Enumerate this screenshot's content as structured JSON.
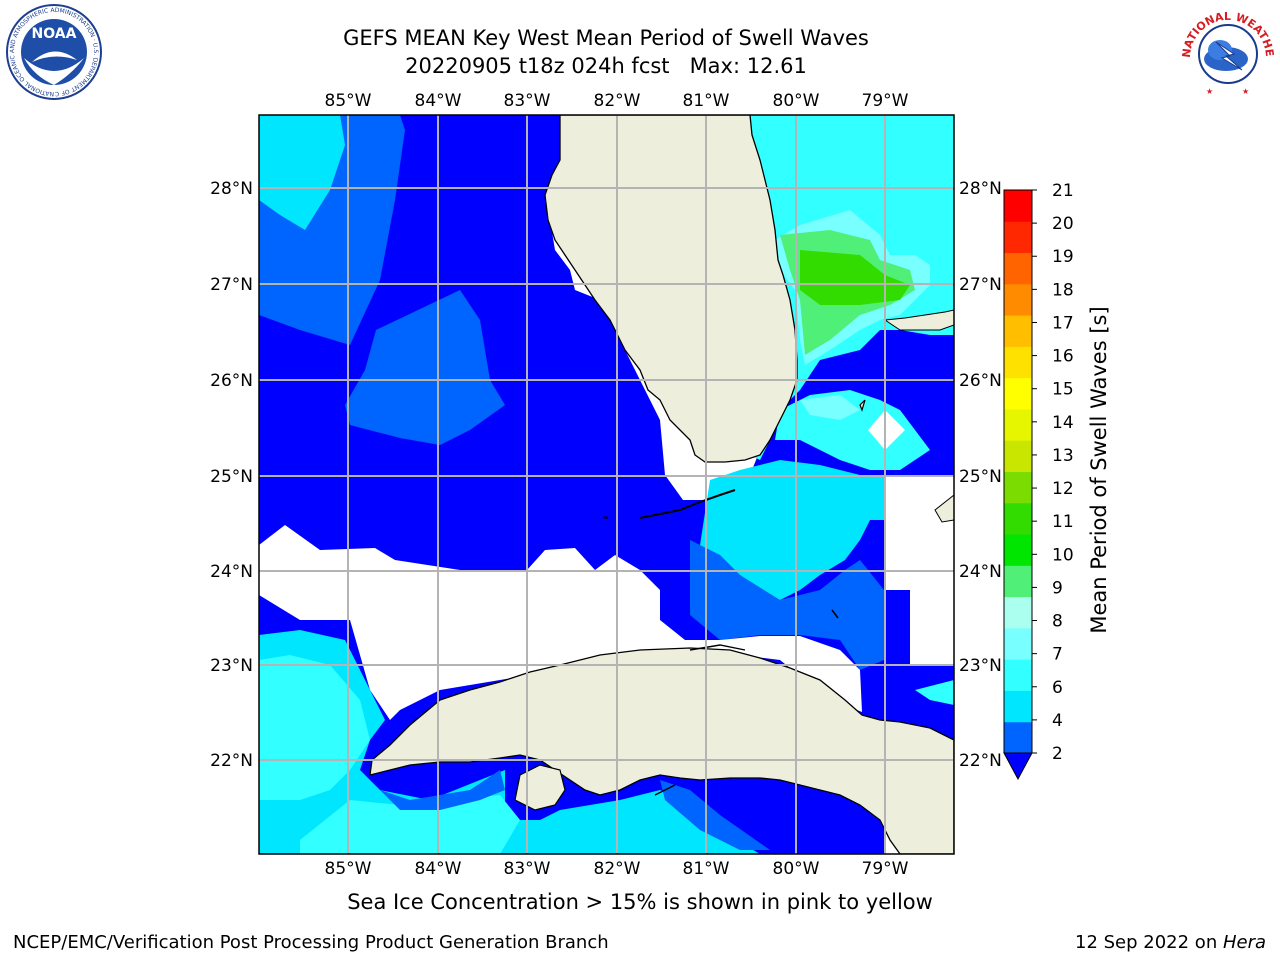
{
  "header": {
    "title": "GEFS MEAN Key West Mean Period of Swell Waves",
    "subtitle": "20220905 t18z 024h fcst   Max: 12.61"
  },
  "logos": {
    "left": {
      "text": "NOAA",
      "ring_text": "NATIONAL OCEANIC AND ATMOSPHERIC ADMINISTRATION · U.S. DEPARTMENT OF COMMERCE"
    },
    "right": {
      "ring_text": "NATIONAL WEATHER SERVICE"
    }
  },
  "map": {
    "lon_labels": [
      "85°W",
      "84°W",
      "83°W",
      "82°W",
      "81°W",
      "80°W",
      "79°W"
    ],
    "lat_labels": [
      "28°N",
      "27°N",
      "26°N",
      "25°N",
      "24°N",
      "23°N",
      "22°N"
    ],
    "colors": {
      "land": "#eeeedd",
      "coast": "#000000",
      "grid": "#b4b4b4",
      "nodata": "#ffffff"
    }
  },
  "colorbar": {
    "label": "Mean Period of Swell Waves [s]",
    "ticks": [
      2,
      4,
      6,
      7,
      8,
      9,
      10,
      11,
      12,
      13,
      14,
      15,
      16,
      17,
      18,
      19,
      20,
      21
    ],
    "colors": [
      "#0064ff",
      "#00e6ff",
      "#32ffff",
      "#78ffff",
      "#aaffee",
      "#50f078",
      "#00e600",
      "#32dc00",
      "#7adc00",
      "#c8e600",
      "#e6f500",
      "#ffff00",
      "#ffe100",
      "#ffbe00",
      "#ff8c00",
      "#ff6400",
      "#ff2800",
      "#ff0000"
    ],
    "under_color": "#0000ff"
  },
  "note": "Sea Ice Concentration > 15% is shown in pink to yellow",
  "footer": {
    "left": "NCEP/EMC/Verification Post Processing Product Generation Branch",
    "right_date": "12 Sep 2022 on ",
    "right_host": "Hera"
  }
}
